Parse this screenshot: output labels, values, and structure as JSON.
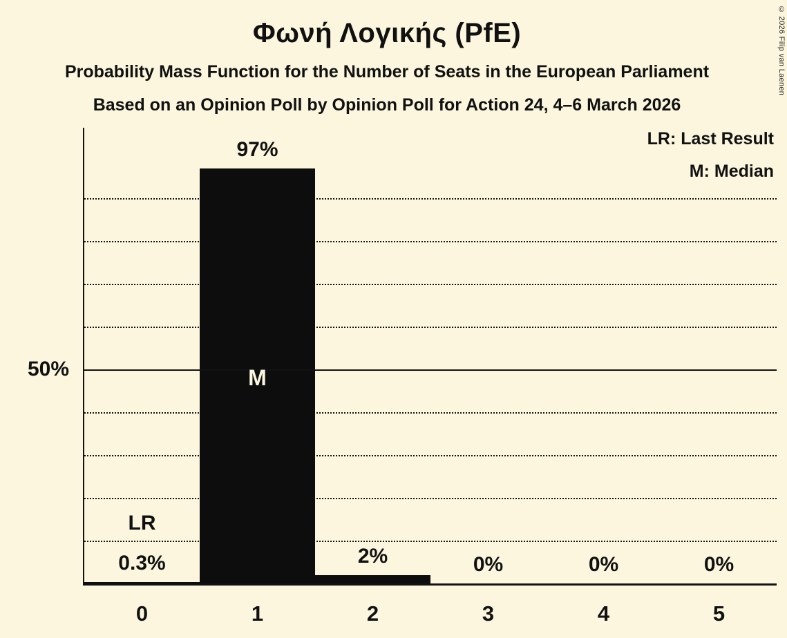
{
  "title": "Φωνή Λογικής (PfE)",
  "subtitle1": "Probability Mass Function for the Number of Seats in the European Parliament",
  "subtitle2": "Based on an Opinion Poll by Opinion Poll for Action 24, 4–6 March 2026",
  "copyright": "© 2026 Filip van Laenen",
  "legend": {
    "lr": "LR: Last Result",
    "m": "M: Median"
  },
  "y_axis": {
    "label_50": "50%"
  },
  "chart_data": {
    "type": "bar",
    "categories": [
      "0",
      "1",
      "2",
      "3",
      "4",
      "5"
    ],
    "values": [
      0.3,
      97,
      2,
      0,
      0,
      0
    ],
    "value_labels": [
      "0.3%",
      "97%",
      "2%",
      "0%",
      "0%",
      "0%"
    ],
    "title": "Φωνή Λογικής (PfE)",
    "xlabel": "",
    "ylabel": "",
    "ylim": [
      0,
      100
    ],
    "gridlines_dotted_pct": [
      10,
      20,
      30,
      40,
      60,
      70,
      80,
      90
    ],
    "gridline_solid_pct": 50,
    "annotations": {
      "median_label": "M",
      "median_category_index": 1,
      "last_result_label": "LR",
      "last_result_category_index": 0
    },
    "bar_color": "#0d0d0d",
    "background_color": "#fbf6dd",
    "legend_position": "top-right",
    "grid": "dotted-horizontal"
  }
}
